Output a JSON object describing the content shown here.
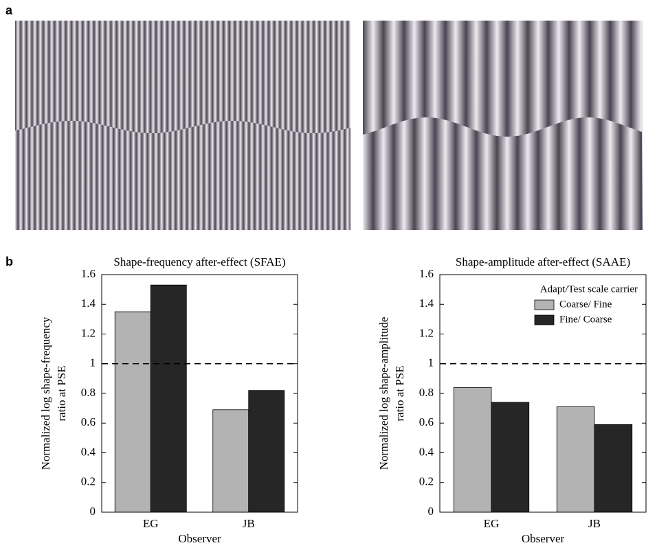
{
  "panel_labels": [
    "a",
    "b"
  ],
  "chart_data": [
    {
      "type": "bar",
      "title": "Shape-frequency after-effect (SFAE)",
      "y_label": [
        "Normalized log shape-frequency",
        "ratio at PSE"
      ],
      "x_label": "Observer",
      "categories": [
        "EG",
        "JB"
      ],
      "series": [
        {
          "color": "#b3b3b3",
          "values": [
            1.35,
            0.69
          ]
        },
        {
          "color": "#262626",
          "values": [
            1.53,
            0.82
          ]
        }
      ],
      "ylim": [
        0,
        1.6
      ],
      "yticks": [
        0,
        0.2,
        0.4,
        0.6,
        0.8,
        1,
        1.2,
        1.4,
        1.6
      ],
      "reference_line": 1
    },
    {
      "type": "bar",
      "title": "Shape-amplitude after-effect (SAAE)",
      "y_label": [
        "Normalized log shape-amplitude",
        "ratio at PSE"
      ],
      "x_label": "Observer",
      "categories": [
        "EG",
        "JB"
      ],
      "legend_title": "Adapt/Test scale carrier",
      "legend": "upper right",
      "series": [
        {
          "name": "Coarse/ Fine",
          "color": "#b3b3b3",
          "values": [
            0.84,
            0.71
          ]
        },
        {
          "name": "Fine/ Coarse",
          "color": "#262626",
          "values": [
            0.74,
            0.59
          ]
        }
      ],
      "ylim": [
        0,
        1.6
      ],
      "yticks": [
        0,
        0.2,
        0.4,
        0.6,
        0.8,
        1,
        1.2,
        1.4,
        1.6
      ],
      "reference_line": 1
    }
  ]
}
